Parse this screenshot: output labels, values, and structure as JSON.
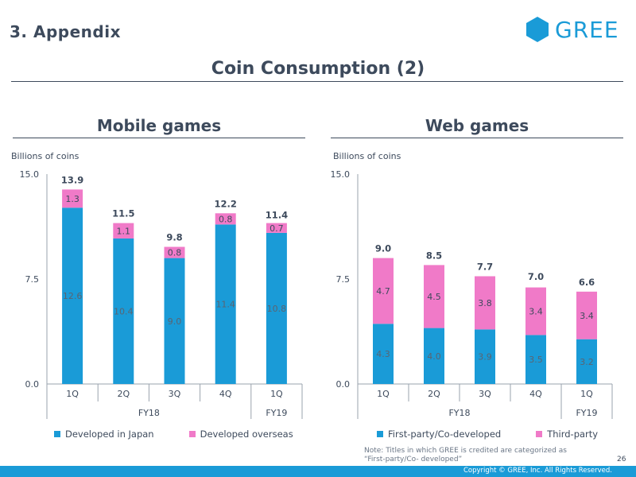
{
  "header": {
    "section_title": "3. Appendix",
    "logo_text": "GREE",
    "page_title": "Coin Consumption (2)"
  },
  "colors": {
    "primary": "#1a9bd7",
    "secondary": "#f07ac8",
    "text": "#3d4a5c"
  },
  "charts": {
    "mobile": {
      "title": "Mobile games",
      "unit": "Billions of coins"
    },
    "web": {
      "title": "Web games",
      "unit": "Billions of coins"
    }
  },
  "chart_data": [
    {
      "type": "bar",
      "stacked": true,
      "title": "Mobile games",
      "ylabel": "Billions of coins",
      "ylim": [
        0,
        15
      ],
      "yticks": [
        "0.0",
        "7.5",
        "15.0"
      ],
      "categories": [
        "1Q",
        "2Q",
        "3Q",
        "4Q",
        "1Q"
      ],
      "groups": [
        {
          "label": "FY18",
          "span": 4
        },
        {
          "label": "FY19",
          "span": 1
        }
      ],
      "series": [
        {
          "name": "Developed in Japan",
          "values": [
            12.6,
            10.4,
            9.0,
            11.4,
            10.8
          ],
          "labels": [
            "12.6",
            "10.4",
            "9.0",
            "11.4",
            "10.8"
          ]
        },
        {
          "name": "Developed overseas",
          "values": [
            1.3,
            1.1,
            0.8,
            0.8,
            0.7
          ],
          "labels": [
            "1.3",
            "1.1",
            "0.8",
            "0.8",
            "0.7"
          ]
        }
      ],
      "totals": [
        "13.9",
        "11.5",
        "9.8",
        "12.2",
        "11.4"
      ],
      "total_values": [
        13.9,
        11.5,
        9.8,
        12.2,
        11.4
      ]
    },
    {
      "type": "bar",
      "stacked": true,
      "title": "Web games",
      "ylabel": "Billions of coins",
      "ylim": [
        0,
        15
      ],
      "yticks": [
        "0.0",
        "7.5",
        "15.0"
      ],
      "categories": [
        "1Q",
        "2Q",
        "3Q",
        "4Q",
        "1Q"
      ],
      "groups": [
        {
          "label": "FY18",
          "span": 4
        },
        {
          "label": "FY19",
          "span": 1
        }
      ],
      "series": [
        {
          "name": "First-party/Co-developed",
          "values": [
            4.3,
            4.0,
            3.9,
            3.5,
            3.2
          ],
          "labels": [
            "4.3",
            "4.0",
            "3.9",
            "3.5",
            "3.2"
          ]
        },
        {
          "name": "Third-party",
          "values": [
            4.7,
            4.5,
            3.8,
            3.4,
            3.4
          ],
          "labels": [
            "4.7",
            "4.5",
            "3.8",
            "3.4",
            "3.4"
          ]
        }
      ],
      "totals": [
        "9.0",
        "8.5",
        "7.7",
        "7.0",
        "6.6"
      ],
      "total_values": [
        9.0,
        8.5,
        7.7,
        7.0,
        6.6
      ]
    }
  ],
  "note": "Note: Titles in which GREE is credited are categorized as “First-party/Co- developed”",
  "page_number": "26",
  "footer": {
    "copyright": "Copyright © GREE, Inc. All Rights Reserved."
  }
}
